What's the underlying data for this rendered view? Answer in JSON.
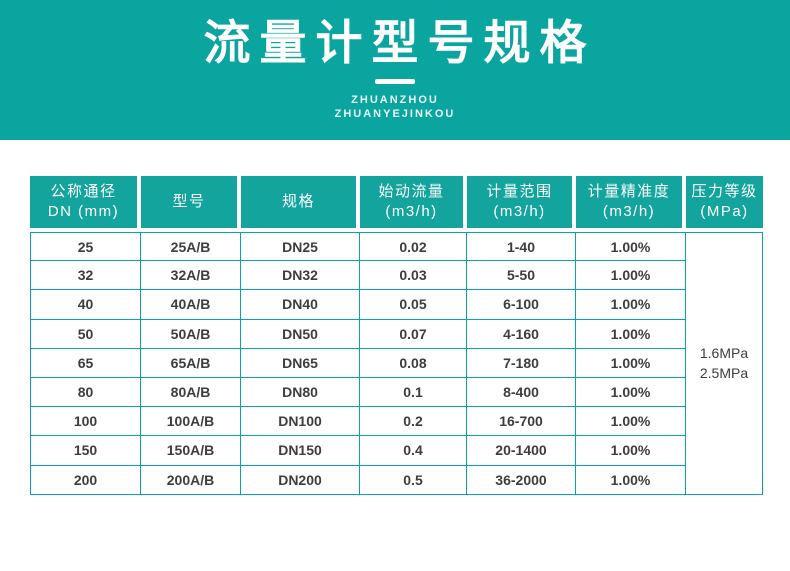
{
  "banner": {
    "title": "流量计型号规格",
    "subtitle_line1": "ZHUANZHOU",
    "subtitle_line2": "ZHUANYEJINKOU"
  },
  "colors": {
    "banner_teal": "#0ba5a0",
    "table_header_teal": "#12a49d",
    "table_border_teal": "#0aa5a0",
    "body_text": "#3d3d3d",
    "header_text": "#ffffff"
  },
  "table": {
    "columns": [
      {
        "line1": "公称通径",
        "line2": "DN (mm)"
      },
      {
        "line1": "型号",
        "line2": ""
      },
      {
        "line1": "规格",
        "line2": ""
      },
      {
        "line1": "始动流量",
        "line2": "(m3/h)"
      },
      {
        "line1": "计量范围",
        "line2": "(m3/h)"
      },
      {
        "line1": "计量精准度",
        "line2": "(m3/h)"
      },
      {
        "line1": "压力等级",
        "line2": "(MPa)"
      }
    ],
    "rows": [
      [
        "25",
        "25A/B",
        "DN25",
        "0.02",
        "1-40",
        "1.00%"
      ],
      [
        "32",
        "32A/B",
        "DN32",
        "0.03",
        "5-50",
        "1.00%"
      ],
      [
        "40",
        "40A/B",
        "DN40",
        "0.05",
        "6-100",
        "1.00%"
      ],
      [
        "50",
        "50A/B",
        "DN50",
        "0.07",
        "4-160",
        "1.00%"
      ],
      [
        "65",
        "65A/B",
        "DN65",
        "0.08",
        "7-180",
        "1.00%"
      ],
      [
        "80",
        "80A/B",
        "DN80",
        "0.1",
        "8-400",
        "1.00%"
      ],
      [
        "100",
        "100A/B",
        "DN100",
        "0.2",
        "16-700",
        "1.00%"
      ],
      [
        "150",
        "150A/B",
        "DN150",
        "0.4",
        "20-1400",
        "1.00%"
      ],
      [
        "200",
        "200A/B",
        "DN200",
        "0.5",
        "36-2000",
        "1.00%"
      ]
    ],
    "pressure": {
      "line1": "1.6MPa",
      "line2": "2.5MPa"
    }
  }
}
